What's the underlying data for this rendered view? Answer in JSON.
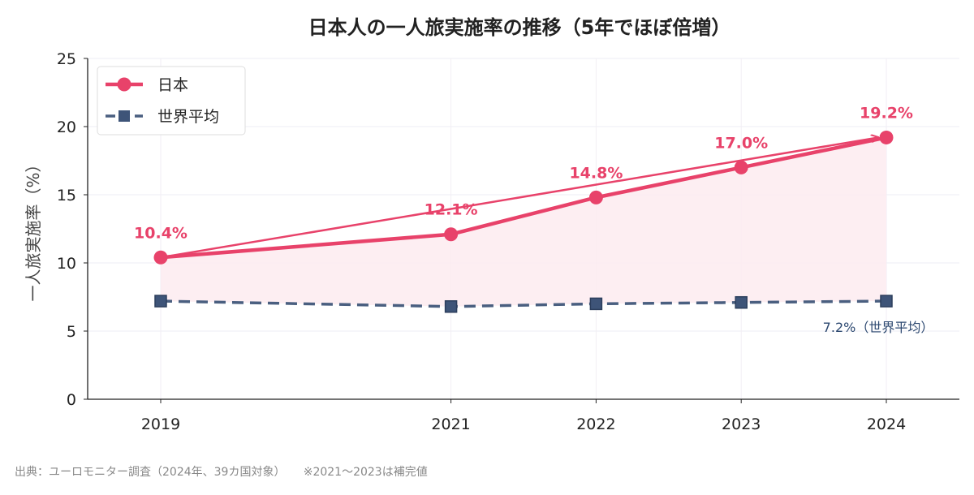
{
  "chart_data": {
    "type": "line",
    "title": "日本人の一人旅実施率の推移（5年でほぼ倍増）",
    "xlabel": "",
    "ylabel": "一人旅実施率（%）",
    "x": [
      2019,
      2021,
      2022,
      2023,
      2024
    ],
    "x_ticks": [
      "2019",
      "2021",
      "2022",
      "2023",
      "2024"
    ],
    "ylim": [
      0,
      25
    ],
    "y_ticks": [
      "0",
      "5",
      "10",
      "15",
      "20",
      "25"
    ],
    "grid": true,
    "legend_position": "top-left",
    "series": [
      {
        "name": "日本",
        "values": [
          10.4,
          12.1,
          14.8,
          17.0,
          19.2
        ],
        "color": "#e8426a",
        "style": "solid-circle",
        "fill_below": true,
        "data_labels": [
          "10.4%",
          "12.1%",
          "14.8%",
          "17.0%",
          "19.2%"
        ]
      },
      {
        "name": "世界平均",
        "values": [
          7.2,
          6.8,
          7.0,
          7.1,
          7.2
        ],
        "color": "#4a5f80",
        "style": "dashed-square"
      }
    ],
    "annotations": [
      {
        "text": "7.2%（世界平均）",
        "x": 2024,
        "y": 7.2
      },
      {
        "type": "arrow",
        "from": [
          2019,
          10.4
        ],
        "to": [
          2024,
          19.2
        ]
      }
    ]
  },
  "footer": {
    "source": "出典：ユーロモニター調査（2024年、39カ国対象）",
    "note": "※2021〜2023は補完値"
  }
}
